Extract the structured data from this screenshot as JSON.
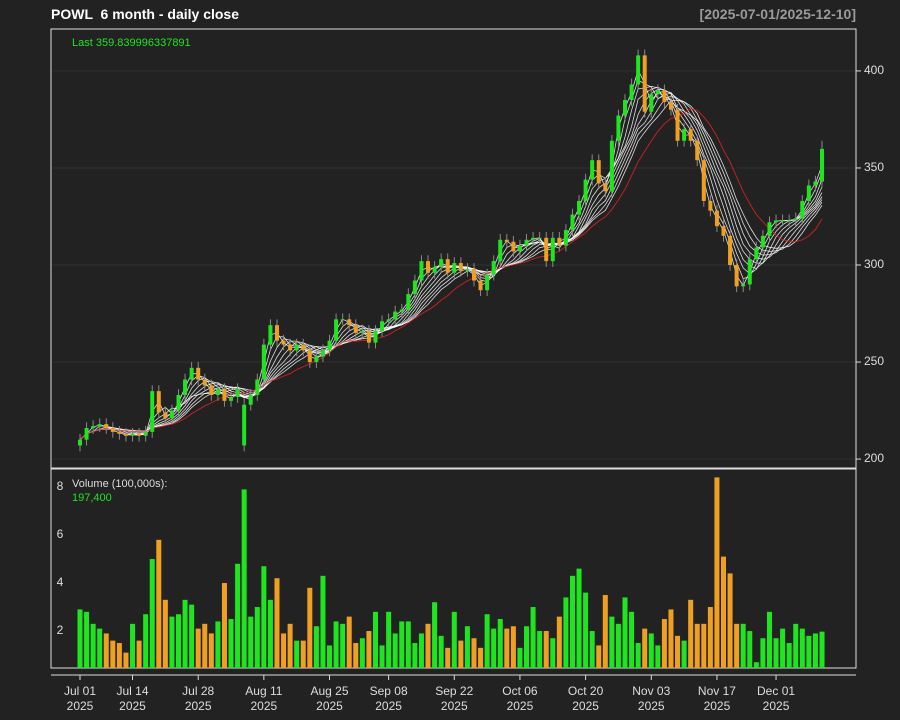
{
  "chart_data": [
    {
      "type": "candlestick",
      "title": "POWL  6 month - daily close",
      "subtitle": "[2025-07-01/2025-12-10]",
      "last_label": "Last 359.839996337891",
      "up_color": "#1ee61e",
      "down_color": "#f0a020",
      "ma_color": "#ffffff",
      "ma_long_color": "#e02020",
      "ylim": [
        195.4,
        421.6
      ],
      "yticks": [
        200,
        250,
        300,
        350,
        400
      ],
      "grid": true,
      "open": [
        207,
        210,
        216,
        217,
        218,
        216,
        214,
        213,
        212,
        213,
        212,
        214,
        235,
        224,
        221,
        225,
        233,
        241,
        247,
        241,
        238,
        233,
        236,
        230,
        232,
        207,
        228,
        233,
        241,
        259,
        269,
        261,
        259,
        256,
        259,
        256,
        250,
        253,
        256,
        261,
        272,
        272,
        269,
        265,
        266,
        260,
        266,
        271,
        272,
        276,
        277,
        285,
        292,
        302,
        296,
        299,
        303,
        296,
        301,
        297,
        298,
        292,
        287,
        295,
        302,
        313,
        312,
        307,
        310,
        313,
        314,
        314,
        302,
        314,
        310,
        318,
        326,
        333,
        344,
        354,
        342,
        338,
        364,
        377,
        385,
        393,
        408,
        379,
        388,
        390,
        384,
        380,
        364,
        370,
        364,
        354,
        333,
        328,
        320,
        315,
        300,
        289,
        290,
        303,
        309,
        315,
        322,
        323,
        323,
        323,
        324,
        333,
        341,
        343
      ],
      "high": [
        213,
        219,
        220,
        221,
        221,
        219,
        217,
        216,
        216,
        216,
        217,
        238,
        238,
        227,
        228,
        236,
        244,
        250,
        250,
        244,
        241,
        239,
        239,
        235,
        239,
        231,
        236,
        244,
        262,
        272,
        272,
        264,
        262,
        262,
        262,
        259,
        256,
        259,
        264,
        275,
        275,
        275,
        272,
        269,
        269,
        269,
        274,
        275,
        279,
        280,
        288,
        295,
        305,
        305,
        302,
        306,
        306,
        304,
        304,
        301,
        301,
        295,
        298,
        305,
        316,
        316,
        315,
        313,
        316,
        317,
        317,
        317,
        317,
        317,
        321,
        329,
        336,
        347,
        357,
        357,
        345,
        367,
        380,
        388,
        396,
        411,
        411,
        391,
        393,
        393,
        387,
        383,
        373,
        373,
        367,
        357,
        336,
        331,
        323,
        318,
        303,
        293,
        306,
        312,
        318,
        325,
        326,
        326,
        326,
        327,
        336,
        344,
        346,
        364
      ],
      "low": [
        204,
        207,
        213,
        214,
        213,
        211,
        210,
        209,
        209,
        209,
        209,
        211,
        221,
        218,
        218,
        222,
        230,
        238,
        238,
        235,
        230,
        230,
        227,
        227,
        229,
        204,
        225,
        230,
        238,
        256,
        258,
        256,
        253,
        253,
        253,
        247,
        247,
        250,
        253,
        258,
        269,
        266,
        262,
        262,
        257,
        257,
        263,
        268,
        269,
        273,
        274,
        282,
        289,
        293,
        293,
        296,
        293,
        293,
        294,
        294,
        289,
        284,
        284,
        292,
        299,
        309,
        304,
        304,
        307,
        310,
        311,
        299,
        299,
        307,
        307,
        315,
        323,
        330,
        341,
        339,
        335,
        335,
        361,
        374,
        382,
        390,
        376,
        376,
        385,
        381,
        377,
        361,
        361,
        361,
        351,
        330,
        325,
        317,
        312,
        297,
        286,
        286,
        287,
        300,
        306,
        312,
        319,
        320,
        320,
        320,
        321,
        330,
        338,
        340
      ],
      "close": [
        210,
        216,
        217,
        218,
        216,
        214,
        213,
        212,
        213,
        212,
        214,
        235,
        224,
        221,
        225,
        233,
        241,
        247,
        241,
        238,
        233,
        236,
        230,
        232,
        236,
        228,
        233,
        241,
        259,
        269,
        261,
        259,
        256,
        259,
        256,
        250,
        253,
        256,
        261,
        272,
        272,
        269,
        265,
        266,
        260,
        266,
        271,
        272,
        276,
        277,
        285,
        292,
        302,
        296,
        299,
        303,
        296,
        301,
        297,
        298,
        292,
        287,
        295,
        302,
        313,
        312,
        307,
        310,
        313,
        314,
        314,
        302,
        314,
        310,
        318,
        326,
        333,
        344,
        354,
        342,
        338,
        364,
        377,
        385,
        393,
        408,
        379,
        388,
        390,
        384,
        380,
        364,
        370,
        364,
        354,
        333,
        328,
        320,
        315,
        300,
        289,
        290,
        303,
        309,
        315,
        322,
        323,
        323,
        323,
        324,
        333,
        341,
        343,
        359.839996337891
      ]
    },
    {
      "type": "bar",
      "title": "Volume (100,000s):",
      "last_label": "197,400",
      "ylim": [
        0.46,
        8.75
      ],
      "yticks": [
        2,
        4,
        6,
        8
      ],
      "grid": false,
      "categories": [
        "Jul 01\n2025",
        null,
        null,
        null,
        null,
        null,
        null,
        null,
        "Jul 14\n2025",
        null,
        null,
        null,
        null,
        null,
        null,
        null,
        null,
        null,
        "Jul 28\n2025",
        null,
        null,
        null,
        null,
        null,
        null,
        null,
        null,
        null,
        "Aug 11\n2025",
        null,
        null,
        null,
        null,
        null,
        null,
        null,
        null,
        null,
        "Aug 25\n2025",
        null,
        null,
        null,
        null,
        null,
        null,
        null,
        null,
        "Sep 08\n2025",
        null,
        null,
        null,
        null,
        null,
        null,
        null,
        null,
        null,
        "Sep 22\n2025",
        null,
        null,
        null,
        null,
        null,
        null,
        null,
        null,
        null,
        "Oct 06\n2025",
        null,
        null,
        null,
        null,
        null,
        null,
        null,
        null,
        null,
        "Oct 20\n2025",
        null,
        null,
        null,
        null,
        null,
        null,
        null,
        null,
        null,
        "Nov 03\n2025",
        null,
        null,
        null,
        null,
        null,
        null,
        null,
        null,
        null,
        "Nov 17\n2025",
        null,
        null,
        null,
        null,
        null,
        null,
        null,
        null,
        "Dec 01\n2025",
        null,
        null,
        null,
        null,
        null,
        null,
        null
      ],
      "values": [
        2.9,
        2.8,
        2.3,
        2.1,
        1.9,
        1.6,
        1.5,
        1.1,
        2.3,
        1.6,
        2.7,
        5.0,
        5.8,
        3.3,
        2.6,
        2.7,
        3.3,
        3.1,
        2.1,
        2.3,
        1.9,
        2.4,
        4.0,
        2.5,
        4.8,
        7.9,
        2.6,
        3.0,
        4.7,
        3.3,
        4.2,
        1.9,
        2.3,
        1.6,
        1.6,
        3.8,
        2.2,
        4.3,
        1.4,
        2.4,
        2.3,
        2.6,
        1.5,
        1.7,
        2.0,
        2.8,
        1.4,
        2.8,
        1.9,
        2.4,
        2.4,
        1.5,
        1.9,
        2.3,
        3.2,
        1.8,
        1.3,
        2.8,
        1.6,
        2.2,
        1.7,
        1.3,
        2.7,
        2.1,
        2.5,
        2.1,
        2.2,
        1.3,
        2.2,
        3.0,
        2.0,
        2.0,
        1.7,
        2.6,
        3.4,
        4.3,
        4.6,
        3.6,
        2.0,
        1.4,
        3.5,
        2.6,
        2.3,
        3.4,
        2.8,
        1.5,
        2.1,
        1.9,
        1.4,
        2.5,
        2.9,
        1.8,
        1.6,
        3.3,
        2.3,
        2.3,
        3.0,
        8.4,
        5.1,
        4.4,
        2.3,
        2.3,
        2.0,
        0.7,
        1.7,
        2.8,
        1.7,
        2.1,
        1.5,
        2.3,
        2.1,
        1.8,
        1.9,
        1.974
      ]
    }
  ]
}
